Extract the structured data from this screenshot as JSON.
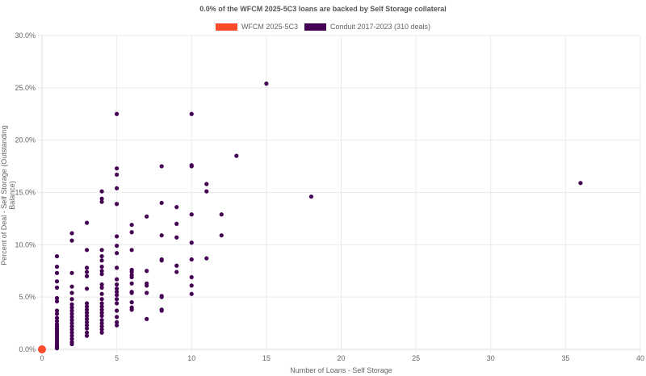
{
  "title": "0.0% of the WFCM 2025-5C3 loans are backed by Self Storage collateral",
  "legend": [
    {
      "label": "WFCM 2025-5C3",
      "color": "#fa4b2a"
    },
    {
      "label": "Conduit 2017-2023 (310 deals)",
      "color": "#440154"
    }
  ],
  "axes": {
    "xlabel": "Number of Loans - Self Storage",
    "ylabel": "Percent of Deal - Self Storage (Outstanding Balance)",
    "xticks": [
      "0",
      "5",
      "10",
      "15",
      "20",
      "25",
      "30",
      "35",
      "40"
    ],
    "yticks": [
      "0.0%",
      "5.0%",
      "10.0%",
      "15.0%",
      "20.0%",
      "25.0%",
      "30.0%"
    ]
  },
  "chart_data": {
    "type": "scatter",
    "title": "0.0% of the WFCM 2025-5C3 loans are backed by Self Storage collateral",
    "xlabel": "Number of Loans - Self Storage",
    "ylabel": "Percent of Deal - Self Storage (Outstanding Balance)",
    "xlim": [
      0,
      40
    ],
    "ylim": [
      0,
      30
    ],
    "grid": true,
    "legend_position": "top",
    "series": [
      {
        "name": "WFCM 2025-5C3",
        "color": "#fa4b2a",
        "points": [
          [
            0,
            0.0
          ]
        ]
      },
      {
        "name": "Conduit 2017-2023 (310 deals)",
        "color": "#440154",
        "points": [
          [
            1,
            8.9
          ],
          [
            1,
            7.9
          ],
          [
            1,
            7.3
          ],
          [
            1,
            6.5
          ],
          [
            1,
            5.9
          ],
          [
            1,
            4.9
          ],
          [
            1,
            4.6
          ],
          [
            1,
            3.7
          ],
          [
            1,
            3.4
          ],
          [
            1,
            3.0
          ],
          [
            1,
            2.7
          ],
          [
            1,
            2.4
          ],
          [
            1,
            2.2
          ],
          [
            1,
            2.0
          ],
          [
            1,
            1.8
          ],
          [
            1,
            1.6
          ],
          [
            1,
            1.4
          ],
          [
            1,
            1.2
          ],
          [
            1,
            1.0
          ],
          [
            1,
            0.8
          ],
          [
            1,
            0.6
          ],
          [
            1,
            0.4
          ],
          [
            1,
            0.3
          ],
          [
            1,
            0.2
          ],
          [
            1,
            0.1
          ],
          [
            2,
            11.1
          ],
          [
            2,
            10.4
          ],
          [
            2,
            7.3
          ],
          [
            2,
            6.0
          ],
          [
            2,
            5.4
          ],
          [
            2,
            4.8
          ],
          [
            2,
            4.3
          ],
          [
            2,
            4.0
          ],
          [
            2,
            3.7
          ],
          [
            2,
            3.4
          ],
          [
            2,
            3.1
          ],
          [
            2,
            2.8
          ],
          [
            2,
            2.5
          ],
          [
            2,
            2.2
          ],
          [
            2,
            1.9
          ],
          [
            2,
            1.6
          ],
          [
            2,
            1.3
          ],
          [
            2,
            1.0
          ],
          [
            2,
            0.7
          ],
          [
            2,
            0.5
          ],
          [
            3,
            12.1
          ],
          [
            3,
            9.5
          ],
          [
            3,
            7.8
          ],
          [
            3,
            7.4
          ],
          [
            3,
            7.0
          ],
          [
            3,
            5.8
          ],
          [
            3,
            4.4
          ],
          [
            3,
            4.1
          ],
          [
            3,
            3.8
          ],
          [
            3,
            3.5
          ],
          [
            3,
            3.2
          ],
          [
            3,
            2.9
          ],
          [
            3,
            2.6
          ],
          [
            3,
            2.3
          ],
          [
            3,
            2.0
          ],
          [
            3,
            1.6
          ],
          [
            3,
            1.3
          ],
          [
            4,
            15.1
          ],
          [
            4,
            14.4
          ],
          [
            4,
            14.1
          ],
          [
            4,
            9.5
          ],
          [
            4,
            8.9
          ],
          [
            4,
            8.5
          ],
          [
            4,
            7.9
          ],
          [
            4,
            7.5
          ],
          [
            4,
            7.2
          ],
          [
            4,
            6.2
          ],
          [
            4,
            5.9
          ],
          [
            4,
            5.3
          ],
          [
            4,
            4.8
          ],
          [
            4,
            4.4
          ],
          [
            4,
            4.1
          ],
          [
            4,
            3.8
          ],
          [
            4,
            3.5
          ],
          [
            4,
            3.2
          ],
          [
            4,
            2.8
          ],
          [
            4,
            2.5
          ],
          [
            4,
            2.2
          ],
          [
            4,
            1.9
          ],
          [
            4,
            1.6
          ],
          [
            5,
            22.5
          ],
          [
            5,
            17.3
          ],
          [
            5,
            16.7
          ],
          [
            5,
            15.4
          ],
          [
            5,
            13.9
          ],
          [
            5,
            10.8
          ],
          [
            5,
            9.9
          ],
          [
            5,
            9.2
          ],
          [
            5,
            7.8
          ],
          [
            5,
            6.7
          ],
          [
            5,
            6.2
          ],
          [
            5,
            5.8
          ],
          [
            5,
            5.5
          ],
          [
            5,
            5.2
          ],
          [
            5,
            4.8
          ],
          [
            5,
            4.4
          ],
          [
            5,
            3.7
          ],
          [
            5,
            3.1
          ],
          [
            5,
            2.6
          ],
          [
            5,
            2.3
          ],
          [
            6,
            11.9
          ],
          [
            6,
            11.2
          ],
          [
            6,
            9.5
          ],
          [
            6,
            7.6
          ],
          [
            6,
            7.4
          ],
          [
            6,
            7.1
          ],
          [
            6,
            6.9
          ],
          [
            6,
            6.3
          ],
          [
            6,
            5.5
          ],
          [
            6,
            5.4
          ],
          [
            6,
            4.5
          ],
          [
            6,
            4.0
          ],
          [
            6,
            3.8
          ],
          [
            7,
            12.7
          ],
          [
            7,
            7.5
          ],
          [
            7,
            6.3
          ],
          [
            7,
            6.1
          ],
          [
            7,
            5.4
          ],
          [
            7,
            2.9
          ],
          [
            8,
            17.5
          ],
          [
            8,
            14.0
          ],
          [
            8,
            10.9
          ],
          [
            8,
            8.6
          ],
          [
            8,
            8.5
          ],
          [
            8,
            5.1
          ],
          [
            8,
            5.0
          ],
          [
            8,
            3.8
          ],
          [
            8,
            3.7
          ],
          [
            9,
            13.6
          ],
          [
            9,
            12.0
          ],
          [
            9,
            10.7
          ],
          [
            9,
            8.0
          ],
          [
            9,
            7.4
          ],
          [
            10,
            22.5
          ],
          [
            10,
            17.6
          ],
          [
            10,
            17.5
          ],
          [
            10,
            12.9
          ],
          [
            10,
            10.2
          ],
          [
            10,
            8.6
          ],
          [
            10,
            6.9
          ],
          [
            10,
            6.1
          ],
          [
            10,
            5.3
          ],
          [
            11,
            15.8
          ],
          [
            11,
            15.1
          ],
          [
            11,
            8.7
          ],
          [
            12,
            12.9
          ],
          [
            12,
            10.9
          ],
          [
            13,
            18.5
          ],
          [
            15,
            25.4
          ],
          [
            18,
            14.6
          ],
          [
            36,
            15.9
          ]
        ]
      }
    ]
  }
}
